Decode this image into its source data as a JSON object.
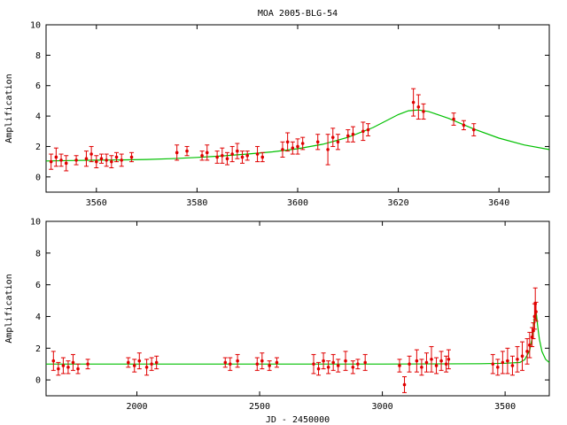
{
  "chart_data": [
    {
      "type": "scatter",
      "title": "MOA 2005-BLG-54",
      "xlabel": "",
      "ylabel": "Amplification",
      "xlim": [
        3550,
        3650
      ],
      "ylim": [
        -1,
        10
      ],
      "xticks": [
        3560,
        3580,
        3600,
        3620,
        3640
      ],
      "yticks": [
        0,
        2,
        4,
        6,
        8,
        10
      ],
      "grid": false,
      "legend": "none",
      "colors": {
        "points": "#e00000",
        "model": "#00c000"
      },
      "model": {
        "name": "",
        "x": [
          3550,
          3555,
          3560,
          3565,
          3570,
          3575,
          3580,
          3585,
          3590,
          3595,
          3600,
          3605,
          3610,
          3615,
          3620,
          3622,
          3624,
          3626,
          3630,
          3635,
          3640,
          3645,
          3650
        ],
        "y": [
          1.05,
          1.08,
          1.1,
          1.12,
          1.15,
          1.2,
          1.28,
          1.38,
          1.5,
          1.65,
          1.85,
          2.15,
          2.6,
          3.25,
          4.1,
          4.35,
          4.4,
          4.3,
          3.85,
          3.15,
          2.55,
          2.1,
          1.8
        ]
      },
      "points": [
        {
          "x": 3551,
          "y": 1.0,
          "e": 0.5
        },
        {
          "x": 3552,
          "y": 1.3,
          "e": 0.6
        },
        {
          "x": 3553,
          "y": 1.1,
          "e": 0.4
        },
        {
          "x": 3554,
          "y": 0.9,
          "e": 0.5
        },
        {
          "x": 3556,
          "y": 1.1,
          "e": 0.3
        },
        {
          "x": 3558,
          "y": 1.2,
          "e": 0.5
        },
        {
          "x": 3559,
          "y": 1.5,
          "e": 0.5
        },
        {
          "x": 3560,
          "y": 1.0,
          "e": 0.4
        },
        {
          "x": 3561,
          "y": 1.2,
          "e": 0.3
        },
        {
          "x": 3562,
          "y": 1.1,
          "e": 0.4
        },
        {
          "x": 3563,
          "y": 1.0,
          "e": 0.4
        },
        {
          "x": 3564,
          "y": 1.3,
          "e": 0.3
        },
        {
          "x": 3565,
          "y": 1.1,
          "e": 0.4
        },
        {
          "x": 3567,
          "y": 1.3,
          "e": 0.3
        },
        {
          "x": 3576,
          "y": 1.6,
          "e": 0.5
        },
        {
          "x": 3578,
          "y": 1.7,
          "e": 0.3
        },
        {
          "x": 3581,
          "y": 1.4,
          "e": 0.3
        },
        {
          "x": 3582,
          "y": 1.6,
          "e": 0.5
        },
        {
          "x": 3584,
          "y": 1.3,
          "e": 0.4
        },
        {
          "x": 3585,
          "y": 1.4,
          "e": 0.5
        },
        {
          "x": 3586,
          "y": 1.2,
          "e": 0.4
        },
        {
          "x": 3587,
          "y": 1.5,
          "e": 0.5
        },
        {
          "x": 3588,
          "y": 1.7,
          "e": 0.5
        },
        {
          "x": 3589,
          "y": 1.3,
          "e": 0.4
        },
        {
          "x": 3590,
          "y": 1.4,
          "e": 0.3
        },
        {
          "x": 3592,
          "y": 1.5,
          "e": 0.5
        },
        {
          "x": 3593,
          "y": 1.3,
          "e": 0.3
        },
        {
          "x": 3597,
          "y": 1.8,
          "e": 0.5
        },
        {
          "x": 3598,
          "y": 2.3,
          "e": 0.6
        },
        {
          "x": 3599,
          "y": 1.9,
          "e": 0.4
        },
        {
          "x": 3600,
          "y": 2.0,
          "e": 0.5
        },
        {
          "x": 3601,
          "y": 2.2,
          "e": 0.4
        },
        {
          "x": 3604,
          "y": 2.3,
          "e": 0.5
        },
        {
          "x": 3606,
          "y": 1.8,
          "e": 1.0
        },
        {
          "x": 3607,
          "y": 2.6,
          "e": 0.6
        },
        {
          "x": 3608,
          "y": 2.3,
          "e": 0.5
        },
        {
          "x": 3610,
          "y": 2.7,
          "e": 0.4
        },
        {
          "x": 3611,
          "y": 2.8,
          "e": 0.5
        },
        {
          "x": 3613,
          "y": 3.0,
          "e": 0.6
        },
        {
          "x": 3614,
          "y": 3.1,
          "e": 0.4
        },
        {
          "x": 3623,
          "y": 4.9,
          "e": 0.9
        },
        {
          "x": 3624,
          "y": 4.6,
          "e": 0.8
        },
        {
          "x": 3625,
          "y": 4.3,
          "e": 0.5
        },
        {
          "x": 3631,
          "y": 3.8,
          "e": 0.4
        },
        {
          "x": 3633,
          "y": 3.4,
          "e": 0.3
        },
        {
          "x": 3635,
          "y": 3.1,
          "e": 0.4
        }
      ]
    },
    {
      "type": "scatter",
      "title": "",
      "xlabel": "JD - 2450000",
      "ylabel": "Amplification",
      "xlim": [
        1630,
        3680
      ],
      "ylim": [
        -1,
        10
      ],
      "xticks": [
        2000,
        2500,
        3000,
        3500
      ],
      "yticks": [
        0,
        2,
        4,
        6,
        8,
        10
      ],
      "grid": false,
      "legend": "none",
      "colors": {
        "points": "#e00000",
        "model": "#00c000"
      },
      "model": {
        "name": "",
        "x": [
          1630,
          2000,
          2500,
          3000,
          3400,
          3500,
          3560,
          3580,
          3600,
          3610,
          3615,
          3620,
          3624,
          3628,
          3632,
          3636,
          3640,
          3650,
          3665,
          3680
        ],
        "y": [
          1.0,
          1.0,
          1.0,
          1.0,
          1.02,
          1.05,
          1.1,
          1.28,
          1.85,
          2.6,
          3.25,
          4.1,
          4.4,
          4.1,
          3.5,
          3.0,
          2.55,
          1.8,
          1.3,
          1.1
        ]
      },
      "points": [
        {
          "x": 1660,
          "y": 1.2,
          "e": 0.6
        },
        {
          "x": 1680,
          "y": 0.7,
          "e": 0.4
        },
        {
          "x": 1700,
          "y": 0.9,
          "e": 0.5
        },
        {
          "x": 1720,
          "y": 0.8,
          "e": 0.4
        },
        {
          "x": 1740,
          "y": 1.1,
          "e": 0.5
        },
        {
          "x": 1760,
          "y": 0.7,
          "e": 0.3
        },
        {
          "x": 1800,
          "y": 1.0,
          "e": 0.3
        },
        {
          "x": 1965,
          "y": 1.1,
          "e": 0.3
        },
        {
          "x": 1990,
          "y": 0.9,
          "e": 0.4
        },
        {
          "x": 2010,
          "y": 1.2,
          "e": 0.5
        },
        {
          "x": 2040,
          "y": 0.8,
          "e": 0.5
        },
        {
          "x": 2060,
          "y": 1.0,
          "e": 0.4
        },
        {
          "x": 2080,
          "y": 1.1,
          "e": 0.4
        },
        {
          "x": 2360,
          "y": 1.1,
          "e": 0.3
        },
        {
          "x": 2380,
          "y": 1.0,
          "e": 0.4
        },
        {
          "x": 2410,
          "y": 1.2,
          "e": 0.4
        },
        {
          "x": 2490,
          "y": 1.0,
          "e": 0.4
        },
        {
          "x": 2510,
          "y": 1.2,
          "e": 0.5
        },
        {
          "x": 2540,
          "y": 0.9,
          "e": 0.3
        },
        {
          "x": 2570,
          "y": 1.1,
          "e": 0.3
        },
        {
          "x": 2720,
          "y": 1.0,
          "e": 0.6
        },
        {
          "x": 2740,
          "y": 0.7,
          "e": 0.4
        },
        {
          "x": 2760,
          "y": 1.2,
          "e": 0.5
        },
        {
          "x": 2780,
          "y": 0.8,
          "e": 0.4
        },
        {
          "x": 2800,
          "y": 1.1,
          "e": 0.5
        },
        {
          "x": 2820,
          "y": 0.9,
          "e": 0.4
        },
        {
          "x": 2850,
          "y": 1.2,
          "e": 0.6
        },
        {
          "x": 2880,
          "y": 0.8,
          "e": 0.4
        },
        {
          "x": 2900,
          "y": 1.0,
          "e": 0.3
        },
        {
          "x": 2930,
          "y": 1.1,
          "e": 0.5
        },
        {
          "x": 3070,
          "y": 0.9,
          "e": 0.4
        },
        {
          "x": 3090,
          "y": -0.3,
          "e": 0.5
        },
        {
          "x": 3110,
          "y": 1.0,
          "e": 0.5
        },
        {
          "x": 3140,
          "y": 1.2,
          "e": 0.7
        },
        {
          "x": 3160,
          "y": 0.8,
          "e": 0.5
        },
        {
          "x": 3180,
          "y": 1.1,
          "e": 0.6
        },
        {
          "x": 3200,
          "y": 1.3,
          "e": 0.8
        },
        {
          "x": 3220,
          "y": 0.9,
          "e": 0.5
        },
        {
          "x": 3240,
          "y": 1.2,
          "e": 0.6
        },
        {
          "x": 3260,
          "y": 1.0,
          "e": 0.5
        },
        {
          "x": 3270,
          "y": 1.3,
          "e": 0.6
        },
        {
          "x": 3450,
          "y": 1.0,
          "e": 0.6
        },
        {
          "x": 3470,
          "y": 0.8,
          "e": 0.5
        },
        {
          "x": 3490,
          "y": 1.1,
          "e": 0.7
        },
        {
          "x": 3510,
          "y": 1.2,
          "e": 0.8
        },
        {
          "x": 3530,
          "y": 0.9,
          "e": 0.6
        },
        {
          "x": 3550,
          "y": 1.3,
          "e": 0.8
        },
        {
          "x": 3570,
          "y": 1.5,
          "e": 0.9
        },
        {
          "x": 3590,
          "y": 1.8,
          "e": 0.8
        },
        {
          "x": 3600,
          "y": 2.2,
          "e": 0.8
        },
        {
          "x": 3610,
          "y": 2.7,
          "e": 0.6
        },
        {
          "x": 3615,
          "y": 3.1,
          "e": 0.5
        },
        {
          "x": 3620,
          "y": 4.0,
          "e": 0.8
        },
        {
          "x": 3623,
          "y": 4.8,
          "e": 1.0
        },
        {
          "x": 3626,
          "y": 4.3,
          "e": 0.6
        }
      ]
    }
  ]
}
